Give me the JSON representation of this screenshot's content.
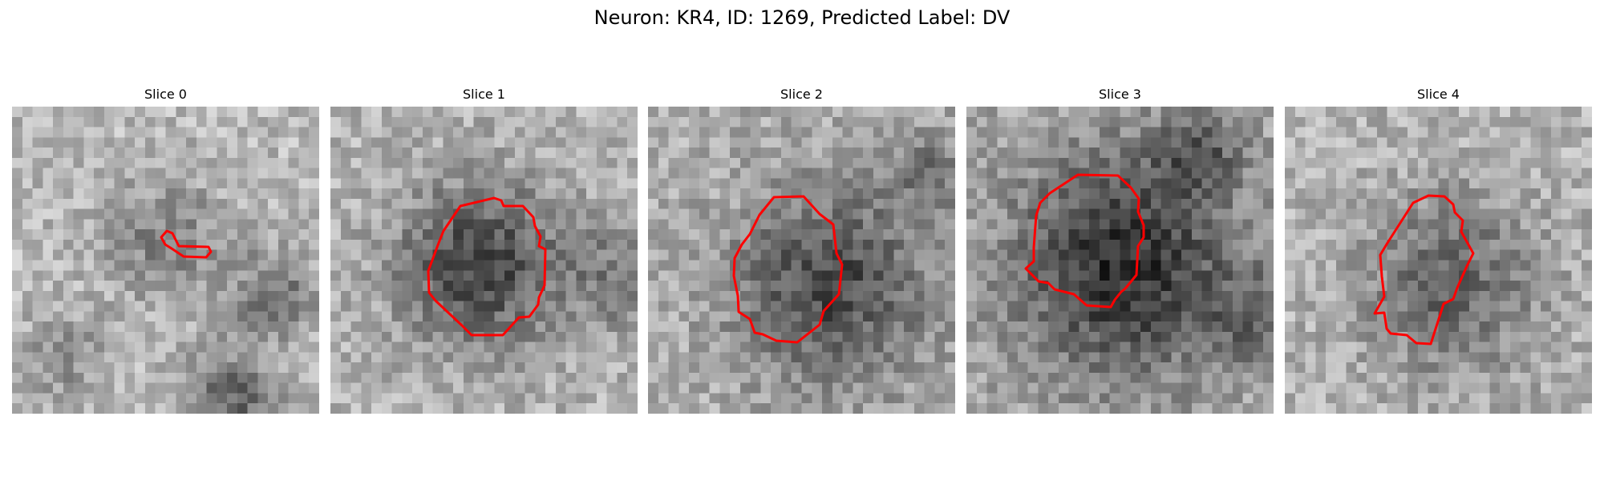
{
  "figure": {
    "title": "Neuron: KR4, ID: 1269, Predicted Label: DV"
  },
  "contour_color": "#ff0000",
  "slices": [
    {
      "label": "Slice 0",
      "contour_shape": "thin-sliver"
    },
    {
      "label": "Slice 1",
      "contour_shape": "octagon"
    },
    {
      "label": "Slice 2",
      "contour_shape": "octagon"
    },
    {
      "label": "Slice 3",
      "contour_shape": "octagon"
    },
    {
      "label": "Slice 4",
      "contour_shape": "octagon"
    }
  ]
}
